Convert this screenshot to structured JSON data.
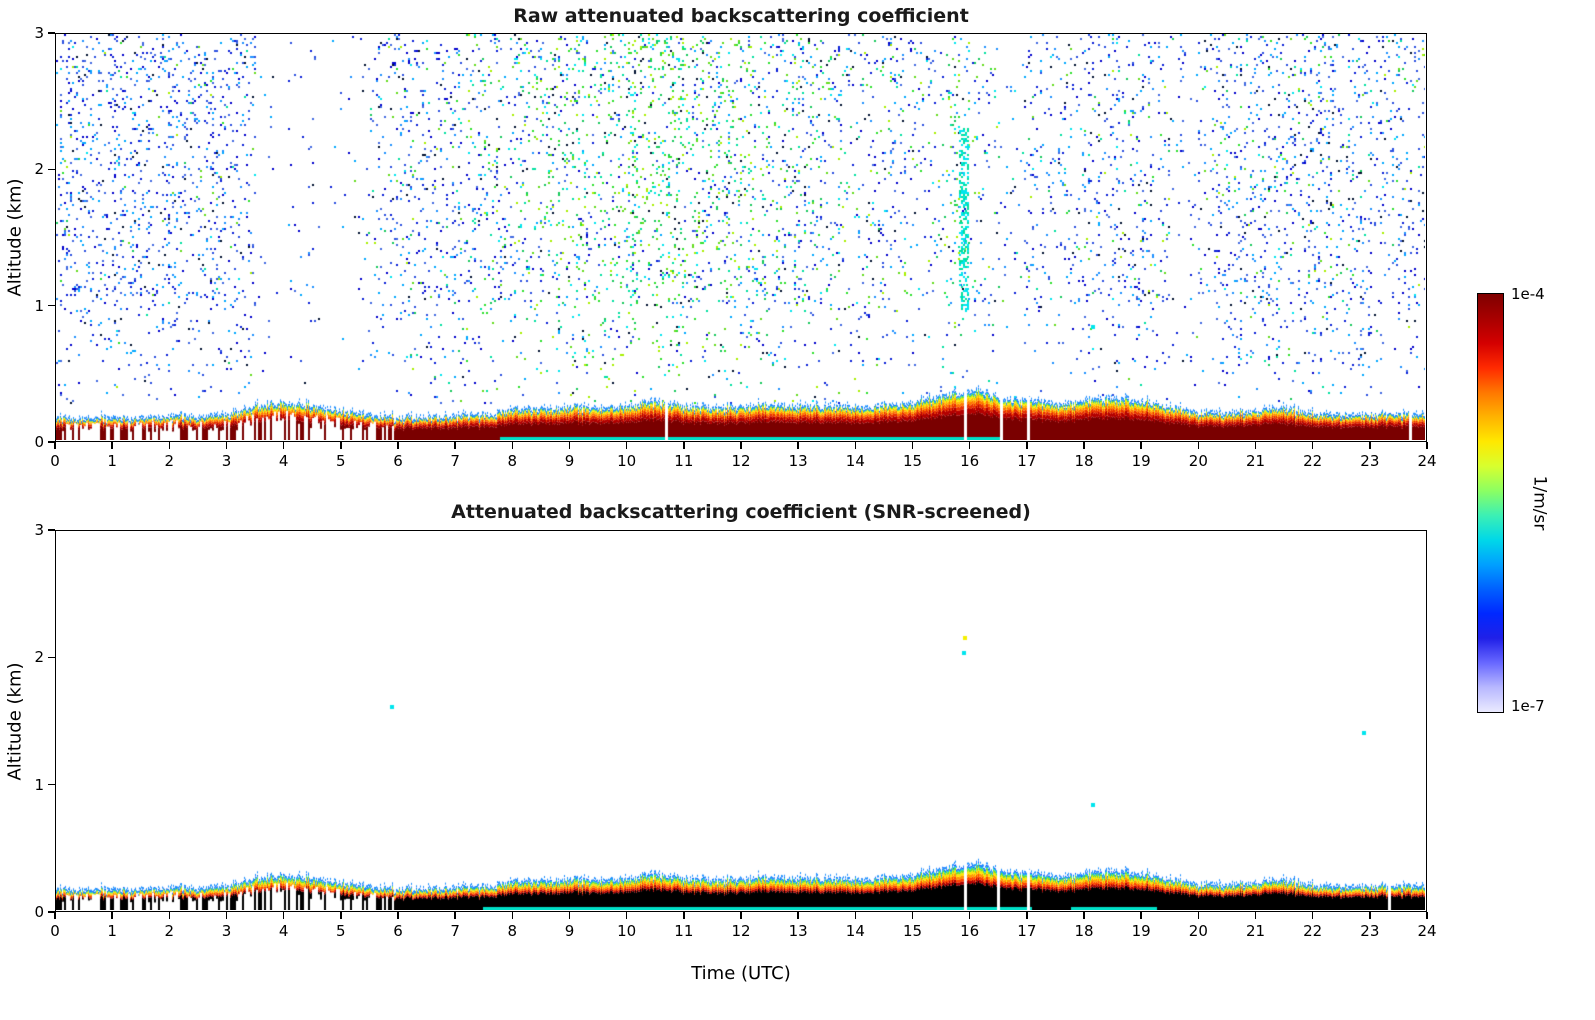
{
  "figure": {
    "background": "#ffffff"
  },
  "palette": {
    "ink": "#001030",
    "blues": [
      "#0a1fd8",
      "#1e90ff",
      "#2b50e0",
      "#0000cd",
      "#00a8ff",
      "#4169e1"
    ],
    "greens": [
      "#17c95c",
      "#00e0a0",
      "#63dd1e",
      "#00e5ee",
      "#a8f000",
      "#2ee02e"
    ],
    "basal": "#00e0c8",
    "cyan": "#00e5ee",
    "yellow": "#f5f000"
  },
  "colorbar": {
    "max_label": "1e-4",
    "min_label": "1e-7",
    "units": "1/m/sr",
    "stops": [
      "#7f0000",
      "#a80000",
      "#d40000",
      "#ff2a00",
      "#ff7700",
      "#ffb300",
      "#ffe800",
      "#d8ff2e",
      "#8cff62",
      "#3cf0b4",
      "#00d8e8",
      "#00a0ff",
      "#0060ff",
      "#0028ff",
      "#2020e8",
      "#6868ff",
      "#b8b8ff",
      "#eaeaff"
    ]
  },
  "chart_data": [
    {
      "type": "heatmap",
      "title": "Raw attenuated backscattering coefficient",
      "xlabel": "",
      "ylabel": "Altitude (km)",
      "x_range_h": [
        0,
        24
      ],
      "y_range_km": [
        0,
        3
      ],
      "x_ticks": [
        0,
        1,
        2,
        3,
        4,
        5,
        6,
        7,
        8,
        9,
        10,
        11,
        12,
        13,
        14,
        15,
        16,
        17,
        18,
        19,
        20,
        21,
        22,
        23,
        24
      ],
      "y_ticks": [
        0,
        1,
        2,
        3
      ],
      "value_scale": "log",
      "value_range": [
        "1e-7",
        "1e-4"
      ],
      "units": "1/m/sr",
      "boundary_layer": {
        "t_step_h": 0.5,
        "top_km": [
          0.18,
          0.17,
          0.18,
          0.17,
          0.19,
          0.18,
          0.2,
          0.26,
          0.28,
          0.26,
          0.22,
          0.2,
          0.18,
          0.18,
          0.19,
          0.2,
          0.24,
          0.24,
          0.26,
          0.24,
          0.26,
          0.3,
          0.26,
          0.25,
          0.26,
          0.27,
          0.26,
          0.26,
          0.25,
          0.26,
          0.28,
          0.34,
          0.38,
          0.33,
          0.3,
          0.28,
          0.3,
          0.33,
          0.3,
          0.26,
          0.22,
          0.21,
          0.22,
          0.25,
          0.21,
          0.2,
          0.2,
          0.21,
          0.2
        ]
      },
      "bands": {
        "fracs": [
          0,
          0.56,
          0.67,
          0.75,
          0.82,
          0.875,
          0.92,
          0.955,
          0.98,
          1.0
        ],
        "colors": [
          "#7a0000",
          "#b30000",
          "#e83000",
          "#ff7700",
          "#ffbb00",
          "#fdf000",
          "#7bdc1e",
          "#00d8d8",
          "#1555ff"
        ]
      },
      "noise": {
        "t_step_h": 0.5,
        "alt_range_km": [
          0.3,
          3.0
        ],
        "density": [
          0.55,
          0.6,
          0.6,
          0.6,
          0.55,
          0.5,
          0.45,
          0.06,
          0.12,
          0.06,
          0.15,
          0.35,
          0.5,
          0.5,
          0.45,
          0.45,
          0.5,
          0.5,
          0.55,
          0.6,
          0.7,
          0.7,
          0.6,
          0.55,
          0.5,
          0.5,
          0.45,
          0.4,
          0.4,
          0.35,
          0.25,
          0.45,
          0.2,
          0.15,
          0.3,
          0.35,
          0.4,
          0.4,
          0.35,
          0.15,
          0.45,
          0.5,
          0.5,
          0.5,
          0.5,
          0.5,
          0.45,
          0.4
        ],
        "green_fraction": [
          0.08,
          0.08,
          0.08,
          0.08,
          0.08,
          0.1,
          0.1,
          0.1,
          0.1,
          0.1,
          0.12,
          0.15,
          0.2,
          0.25,
          0.3,
          0.4,
          0.55,
          0.6,
          0.65,
          0.7,
          0.8,
          0.85,
          0.7,
          0.6,
          0.55,
          0.5,
          0.45,
          0.4,
          0.35,
          0.3,
          0.3,
          0.6,
          0.3,
          0.2,
          0.15,
          0.15,
          0.15,
          0.15,
          0.15,
          0.1,
          0.18,
          0.2,
          0.2,
          0.2,
          0.2,
          0.2,
          0.15,
          0.12
        ]
      },
      "features": [
        {
          "type": "cyan-column",
          "t_range_h": [
            15.84,
            15.97
          ],
          "alt_range_km": [
            0.95,
            2.3
          ],
          "density": 0.45
        }
      ],
      "basal_cyan_t": [
        [
          7.8,
          16.6
        ]
      ],
      "dropouts": {
        "region_h": [
          0,
          5.9
        ],
        "frequency": 0.2,
        "explicit_t": [
          10.68,
          15.92,
          16.55,
          17.02,
          23.72
        ]
      },
      "specks": [
        {
          "t": 18.15,
          "alt": 0.85,
          "c": "cyan"
        }
      ]
    },
    {
      "type": "heatmap",
      "title": "Attenuated backscattering coefficient (SNR-screened)",
      "xlabel": "Time (UTC)",
      "ylabel": "Altitude (km)",
      "x_range_h": [
        0,
        24
      ],
      "y_range_km": [
        0,
        3
      ],
      "x_ticks": [
        0,
        1,
        2,
        3,
        4,
        5,
        6,
        7,
        8,
        9,
        10,
        11,
        12,
        13,
        14,
        15,
        16,
        17,
        18,
        19,
        20,
        21,
        22,
        23,
        24
      ],
      "y_ticks": [
        0,
        1,
        2,
        3
      ],
      "value_scale": "log",
      "value_range": [
        "1e-7",
        "1e-4"
      ],
      "units": "1/m/sr",
      "boundary_layer": {
        "t_step_h": 0.5,
        "top_km": [
          0.18,
          0.17,
          0.18,
          0.17,
          0.19,
          0.18,
          0.2,
          0.26,
          0.28,
          0.26,
          0.22,
          0.2,
          0.18,
          0.18,
          0.19,
          0.2,
          0.24,
          0.24,
          0.26,
          0.24,
          0.26,
          0.3,
          0.26,
          0.25,
          0.26,
          0.27,
          0.26,
          0.26,
          0.25,
          0.26,
          0.28,
          0.34,
          0.38,
          0.33,
          0.3,
          0.28,
          0.3,
          0.33,
          0.3,
          0.26,
          0.22,
          0.21,
          0.22,
          0.25,
          0.21,
          0.2,
          0.2,
          0.21,
          0.2
        ]
      },
      "bands": {
        "fracs": [
          0,
          0.6,
          0.67,
          0.74,
          0.81,
          0.875,
          0.93,
          0.965,
          1.0
        ],
        "colors": [
          "#000000",
          "#b00000",
          "#ff4400",
          "#ff9900",
          "#ffe800",
          "#77dd22",
          "#00d8d8",
          "#1555ff"
        ]
      },
      "noise": null,
      "features": [],
      "basal_cyan_t": [
        [
          7.5,
          17.1
        ],
        [
          17.8,
          19.3
        ]
      ],
      "dropouts": {
        "region_h": [
          0,
          5.9
        ],
        "frequency": 0.2,
        "explicit_t": [
          15.92,
          16.5,
          17.02,
          23.35
        ]
      },
      "specks": [
        {
          "t": 5.85,
          "alt": 1.62,
          "c": "cyan"
        },
        {
          "t": 15.9,
          "alt": 2.17,
          "c": "yellow"
        },
        {
          "t": 15.88,
          "alt": 2.05,
          "c": "cyan"
        },
        {
          "t": 18.15,
          "alt": 0.85,
          "c": "cyan"
        },
        {
          "t": 22.9,
          "alt": 1.42,
          "c": "cyan"
        }
      ]
    }
  ]
}
